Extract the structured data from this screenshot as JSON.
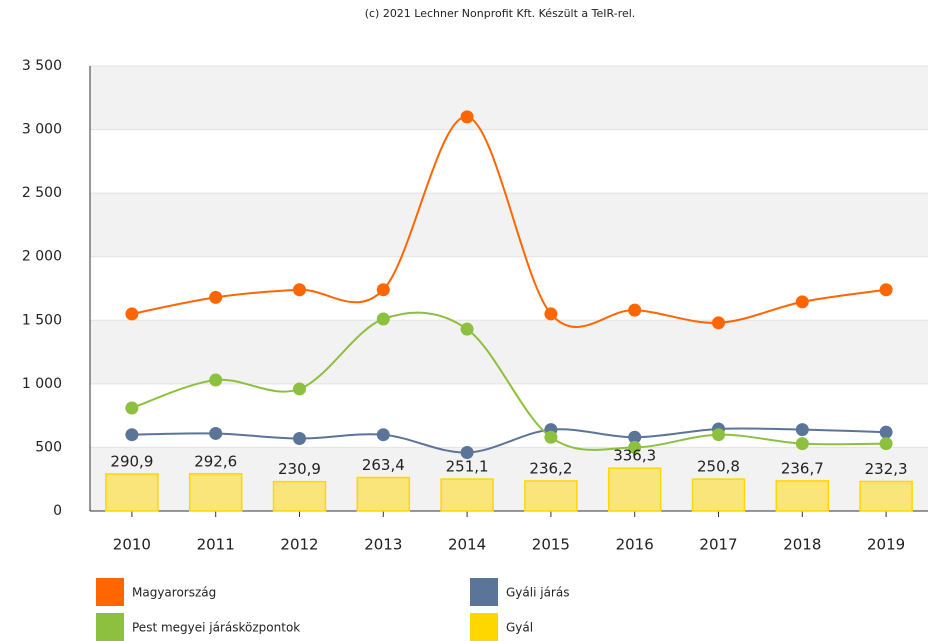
{
  "chart_data": {
    "type": "combo",
    "credit": "(c) 2021 Lechner Nonprofit Kft. Készült a TeIR-rel.",
    "categories": [
      "2010",
      "2011",
      "2012",
      "2013",
      "2014",
      "2015",
      "2016",
      "2017",
      "2018",
      "2019"
    ],
    "series": [
      {
        "name": "Magyarország",
        "type": "line",
        "color": "#ff6600",
        "values": [
          1550,
          1680,
          1740,
          1740,
          3100,
          1550,
          1580,
          1480,
          1645,
          1740
        ]
      },
      {
        "name": "Gyáli járás",
        "type": "line",
        "color": "#5b7599",
        "values": [
          600,
          610,
          570,
          600,
          460,
          640,
          580,
          645,
          640,
          620
        ]
      },
      {
        "name": "Pest megyei járásközpontok",
        "type": "line",
        "color": "#8dc03f",
        "values": [
          810,
          1030,
          960,
          1510,
          1430,
          580,
          500,
          600,
          530,
          530
        ]
      },
      {
        "name": "Gyál",
        "type": "bar",
        "color": "#ffd700",
        "values": [
          290.9,
          292.6,
          230.9,
          263.4,
          251.1,
          236.2,
          336.3,
          250.8,
          236.7,
          232.3
        ],
        "value_labels": [
          "290,9",
          "292,6",
          "230,9",
          "263,4",
          "251,1",
          "236,2",
          "336,3",
          "250,8",
          "236,7",
          "232,3"
        ]
      }
    ],
    "ylim": [
      0,
      3500
    ],
    "yticks": [
      0,
      500,
      {
        "value": 1000,
        "label": "1 000"
      },
      {
        "value": 1500,
        "label": "1 500"
      },
      {
        "value": 2000,
        "label": "2 000"
      },
      {
        "value": 2500,
        "label": "2 500"
      },
      {
        "value": 3000,
        "label": "3 000"
      },
      {
        "value": 3500,
        "label": "3 500"
      }
    ],
    "grid": true,
    "legend": "bottom"
  }
}
